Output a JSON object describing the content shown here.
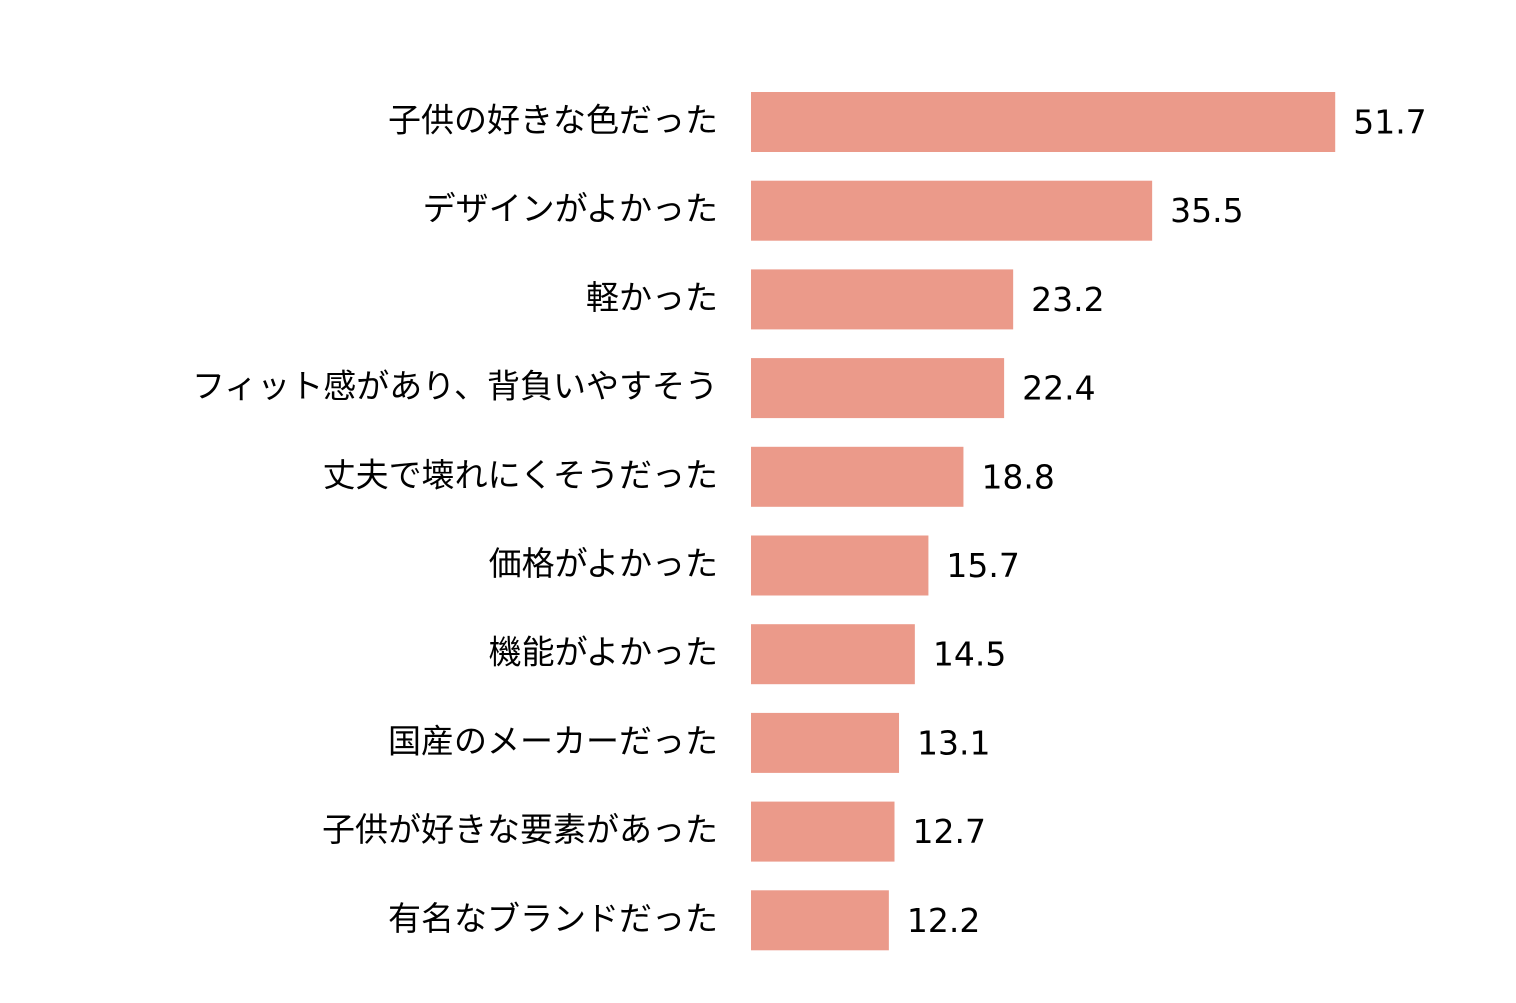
{
  "chart_data": {
    "type": "bar",
    "orientation": "horizontal",
    "color": "#eb9a8a",
    "categories": [
      "子供の好きな色だった",
      "デザインがよかった",
      "軽かった",
      "フィット感があり、背負いやすそう",
      "丈夫で壊れにくそうだった",
      "価格がよかった",
      "機能がよかった",
      "国産のメーカーだった",
      "子供が好きな要素があった",
      "有名なブランドだった"
    ],
    "values": [
      51.7,
      35.5,
      23.2,
      22.4,
      18.8,
      15.7,
      14.5,
      13.1,
      12.7,
      12.2
    ]
  }
}
